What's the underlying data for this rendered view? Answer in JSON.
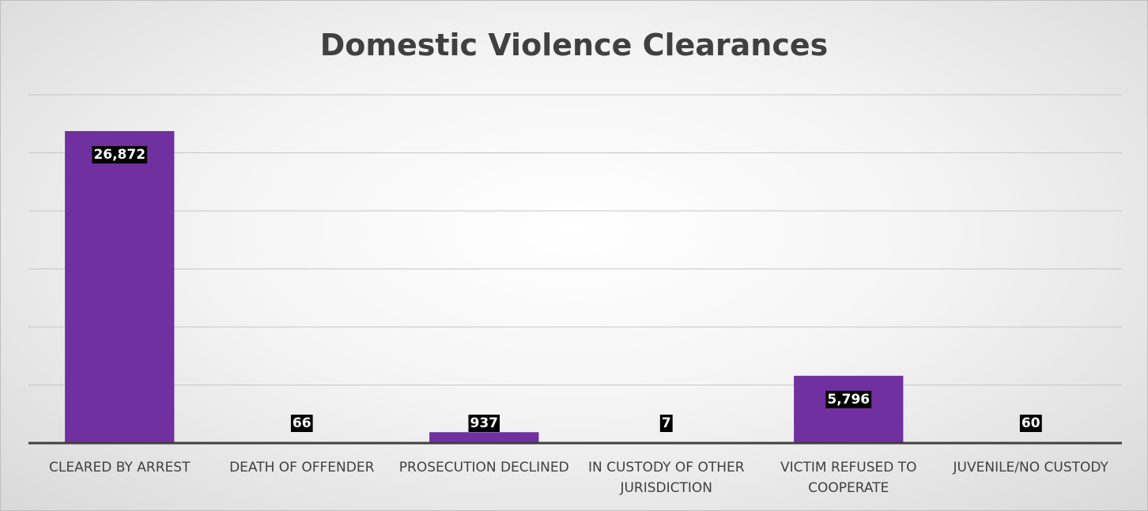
{
  "chart_data": {
    "type": "bar",
    "title": "Domestic Violence Clearances",
    "categories": [
      "CLEARED BY ARREST",
      "DEATH OF OFFENDER",
      "PROSECUTION DECLINED",
      "IN CUSTODY OF OTHER JURISDICTION",
      "VICTIM REFUSED TO COOPERATE",
      "JUVENILE/NO CUSTODY"
    ],
    "values": [
      26872,
      66,
      937,
      7,
      5796,
      60
    ],
    "value_labels": [
      "26,872",
      "66",
      "937",
      "7",
      "5,796",
      "60"
    ],
    "color": "#7030a0",
    "ylim": [
      0,
      30000
    ],
    "yticks": [
      0,
      5000,
      10000,
      15000,
      20000,
      25000,
      30000
    ],
    "grid": true
  }
}
